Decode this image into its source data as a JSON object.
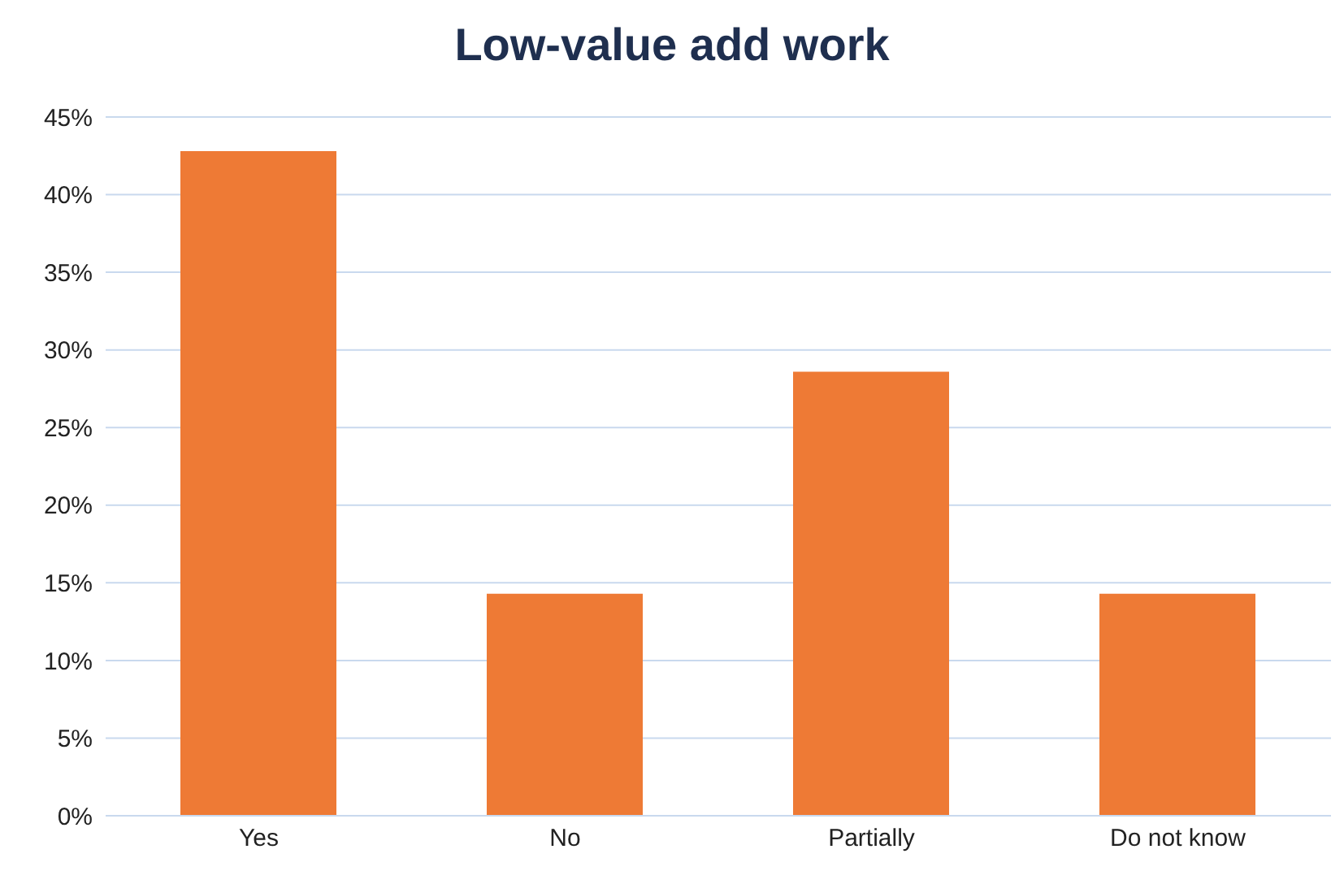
{
  "chart_data": {
    "type": "bar",
    "title": "Low-value add work",
    "categories": [
      "Yes",
      "No",
      "Partially",
      "Do not know"
    ],
    "values": [
      42.8,
      14.3,
      28.6,
      14.3
    ],
    "color": "#ee7a35",
    "ylim": [
      0,
      45
    ],
    "yticks": [
      {
        "value": 0,
        "label": "0%"
      },
      {
        "value": 5,
        "label": "5%"
      },
      {
        "value": 10,
        "label": "10%"
      },
      {
        "value": 15,
        "label": "15%"
      },
      {
        "value": 20,
        "label": "20%"
      },
      {
        "value": 25,
        "label": "25%"
      },
      {
        "value": 30,
        "label": "30%"
      },
      {
        "value": 35,
        "label": "35%"
      },
      {
        "value": 40,
        "label": "40%"
      },
      {
        "value": 45,
        "label": "45%"
      }
    ],
    "grid": "y"
  }
}
